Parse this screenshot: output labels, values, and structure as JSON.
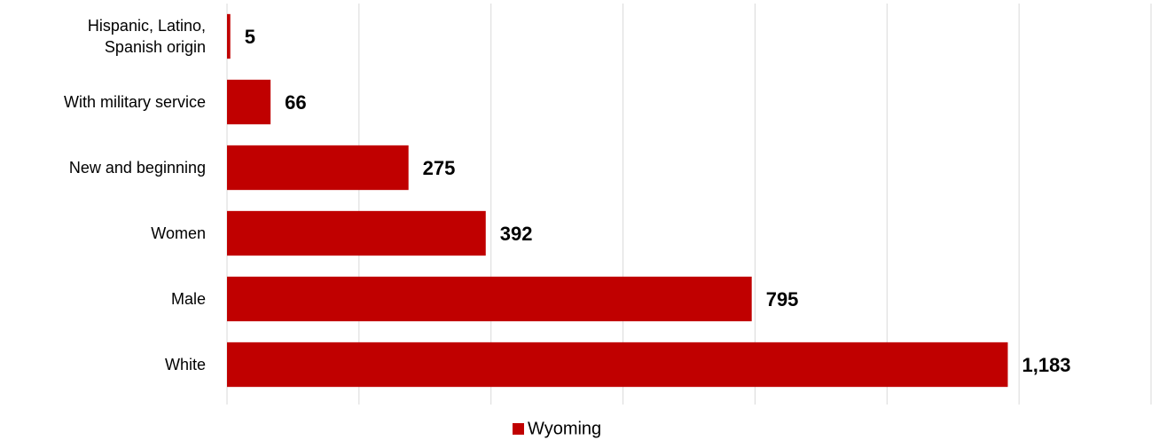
{
  "chart_data": {
    "type": "barh",
    "categories": [
      "Hispanic, Latino, Spanish origin",
      "With military service",
      "New and beginning",
      "Women",
      "Male",
      "White"
    ],
    "series": [
      {
        "name": "Wyoming",
        "color": "#c00000",
        "values": [
          5,
          66,
          275,
          392,
          795,
          1183
        ],
        "value_labels": [
          "5",
          "66",
          "275",
          "392",
          "795",
          "1,183"
        ]
      }
    ],
    "xlim": [
      0,
      1400
    ],
    "xticks": [
      0,
      200,
      400,
      600,
      800,
      1000,
      1200,
      1400
    ],
    "grid": true,
    "legend": "bottom"
  }
}
